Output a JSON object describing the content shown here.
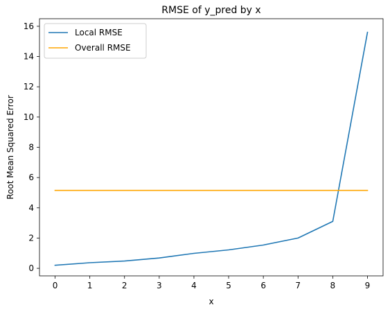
{
  "chart_data": {
    "type": "line",
    "title": "RMSE of y_pred by x",
    "xlabel": "x",
    "ylabel": "Root Mean Squared Error",
    "xlim": [
      -0.45,
      9.45
    ],
    "ylim": [
      -0.5,
      16.5
    ],
    "x_ticks": [
      0,
      1,
      2,
      3,
      4,
      5,
      6,
      7,
      8,
      9
    ],
    "y_ticks": [
      0,
      2,
      4,
      6,
      8,
      10,
      12,
      14,
      16
    ],
    "grid": false,
    "legend_position": "top-left",
    "series": [
      {
        "name": "Local RMSE",
        "color": "#1f77b4",
        "x": [
          0,
          1,
          2,
          3,
          4,
          5,
          6,
          7,
          8,
          9
        ],
        "y": [
          0.2,
          0.37,
          0.48,
          0.68,
          0.99,
          1.22,
          1.54,
          2.0,
          3.1,
          15.6
        ]
      },
      {
        "name": "Overall RMSE",
        "color": "#ffa500",
        "x": [
          0,
          9
        ],
        "y": [
          5.15,
          5.15
        ]
      }
    ]
  }
}
